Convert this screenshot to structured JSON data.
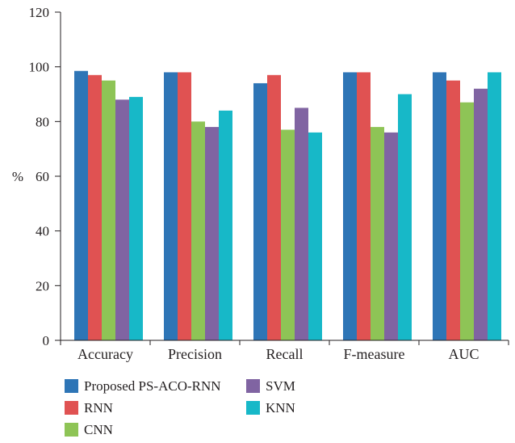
{
  "chart_data": {
    "type": "bar",
    "title": "",
    "xlabel": "",
    "ylabel": "%",
    "ylim": [
      0,
      120
    ],
    "yticks": [
      0,
      20,
      40,
      60,
      80,
      100,
      120
    ],
    "grid": false,
    "legend_position": "bottom-left",
    "categories": [
      "Accuracy",
      "Precision",
      "Recall",
      "F-measure",
      "AUC"
    ],
    "series": [
      {
        "name": "Proposed PS-ACO-RNN",
        "color": "#2e75b6",
        "values": [
          98.5,
          98,
          94,
          98,
          98
        ]
      },
      {
        "name": "RNN",
        "color": "#e05252",
        "values": [
          97,
          98,
          97,
          98,
          95
        ]
      },
      {
        "name": "CNN",
        "color": "#8ec456",
        "values": [
          95,
          80,
          77,
          78,
          87
        ]
      },
      {
        "name": "SVM",
        "color": "#8064a2",
        "values": [
          88,
          78,
          85,
          76,
          92
        ]
      },
      {
        "name": "KNN",
        "color": "#17b8c8",
        "values": [
          89,
          84,
          76,
          90,
          98
        ]
      }
    ]
  }
}
